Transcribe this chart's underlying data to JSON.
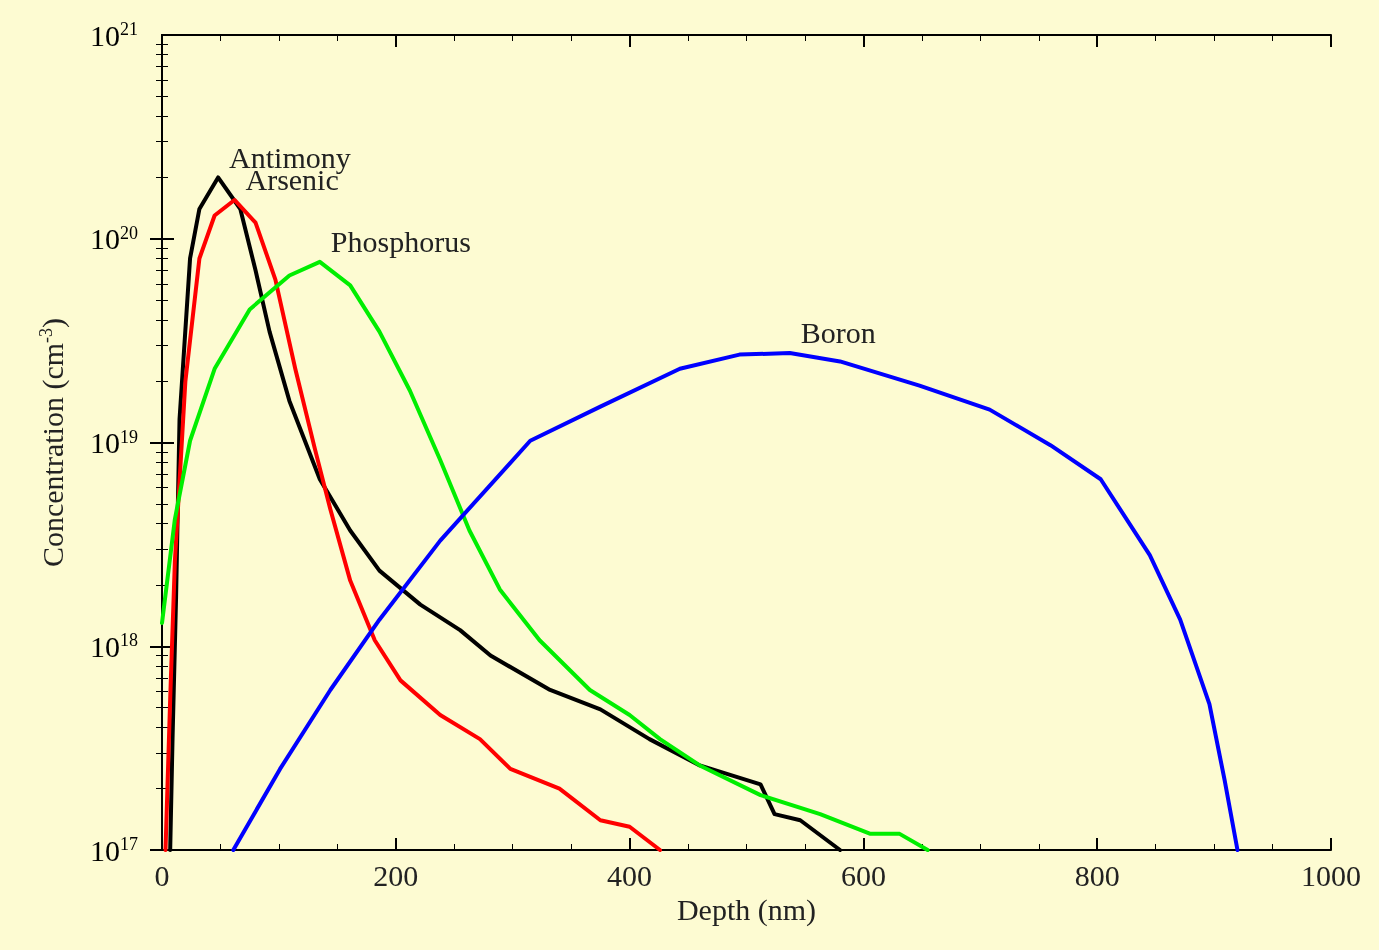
{
  "chart_data": {
    "type": "line",
    "xlabel": "Depth (nm)",
    "ylabel": "Concentration (cm$^{-3}$)",
    "log": "y",
    "grid": false,
    "legend": false,
    "marker": "none",
    "line_style": "solid",
    "xlim": [
      0,
      1000
    ],
    "xticks": [
      0,
      200,
      400,
      600,
      800,
      1000
    ],
    "ylim": [
      1e+17,
      1e+21
    ],
    "yticks": [
      {
        "value": 1e+17,
        "label": "10$^{17}$"
      },
      {
        "value": 1e+18,
        "label": "10$^{18}$"
      },
      {
        "value": 1e+19,
        "label": "10$^{19}$"
      },
      {
        "value": 1e+20,
        "label": "10$^{20}$"
      },
      {
        "value": 1e+21,
        "label": "10$^{21}$"
      }
    ],
    "series": [
      {
        "name": "Antimony",
        "color": "#000000",
        "x": [
          7,
          9,
          12,
          15,
          24,
          32,
          48,
          67,
          80,
          92,
          109,
          135,
          161,
          186,
          221,
          255,
          281,
          332,
          375,
          417,
          460,
          512,
          524,
          546,
          580
        ],
        "values": [
          1e+17,
          3.5e+17,
          1.7e+18,
          1.3e+19,
          8e+19,
          1.4e+20,
          2e+20,
          1.4e+20,
          7e+19,
          3.5e+19,
          1.6e+19,
          6.6e+18,
          3.7e+18,
          2.35e+18,
          1.6e+18,
          1.2e+18,
          9e+17,
          6.1e+17,
          4.9e+17,
          3.5e+17,
          2.6e+17,
          2.1e+17,
          1.5e+17,
          1.4e+17,
          1e+17
        ]
      },
      {
        "name": "Arsenic",
        "color": "#ff0000",
        "x": [
          3,
          7,
          11,
          20,
          32,
          45,
          62,
          80,
          97,
          114,
          131,
          144,
          161,
          182,
          204,
          238,
          272,
          298,
          340,
          375,
          400,
          426
        ],
        "values": [
          1e+17,
          5.5e+17,
          2.6e+18,
          2e+19,
          8e+19,
          1.3e+20,
          1.55e+20,
          1.2e+20,
          6.3e+19,
          2.3e+19,
          9.2e+18,
          4.7e+18,
          2.1e+18,
          1.07e+18,
          6.8e+17,
          4.6e+17,
          3.5e+17,
          2.5e+17,
          2e+17,
          1.4e+17,
          1.3e+17,
          1e+17
        ]
      },
      {
        "name": "Phosphorus",
        "color": "#00ee00",
        "x": [
          0,
          11,
          24,
          45,
          75,
          109,
          135,
          161,
          186,
          212,
          238,
          263,
          289,
          323,
          366,
          400,
          426,
          460,
          512,
          563,
          606,
          631,
          655
        ],
        "values": [
          1.3e+18,
          4.2e+18,
          1.02e+19,
          2.3e+19,
          4.5e+19,
          6.6e+19,
          7.7e+19,
          5.9e+19,
          3.5e+19,
          1.8e+19,
          8.2e+18,
          3.7e+18,
          1.9e+18,
          1.07e+18,
          6.1e+17,
          4.6e+17,
          3.5e+17,
          2.6e+17,
          1.86e+17,
          1.5e+17,
          1.2e+17,
          1.2e+17,
          1e+17
        ]
      },
      {
        "name": "Boron",
        "color": "#0000ff",
        "x": [
          61,
          101,
          144,
          186,
          238,
          281,
          315,
          375,
          443,
          494,
          537,
          580,
          648,
          708,
          760,
          803,
          845,
          871,
          896,
          909,
          920
        ],
        "values": [
          1e+17,
          2.5e+17,
          6.1e+17,
          1.35e+18,
          3.3e+18,
          6.2e+18,
          1.02e+19,
          1.5e+19,
          2.3e+19,
          2.7e+19,
          2.75e+19,
          2.5e+19,
          1.9e+19,
          1.45e+19,
          9.7e+18,
          6.6e+18,
          2.8e+18,
          1.35e+18,
          5.2e+17,
          2.2e+17,
          1e+17
        ]
      }
    ]
  }
}
